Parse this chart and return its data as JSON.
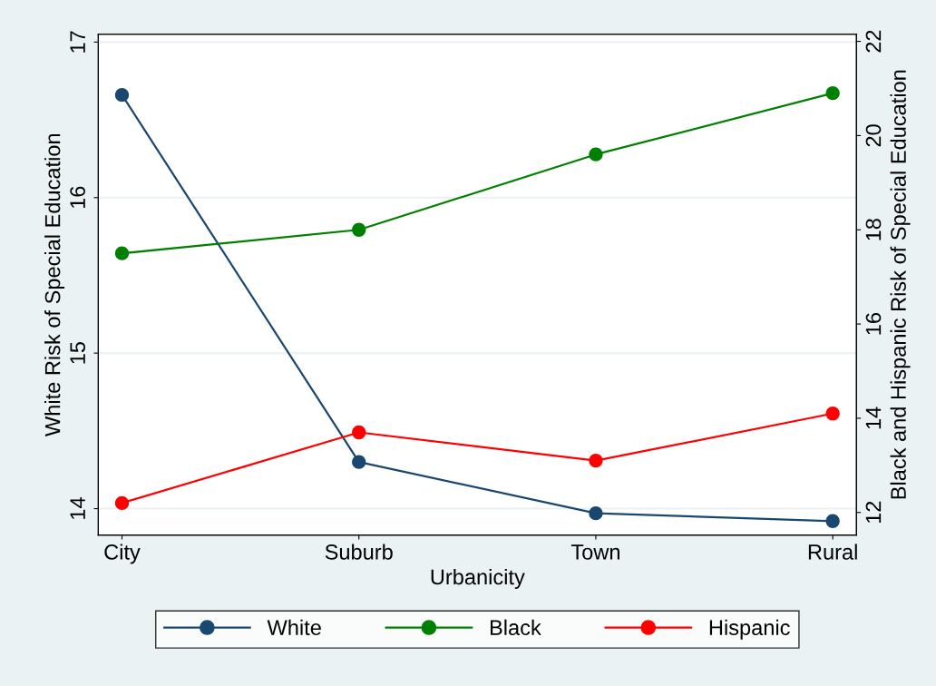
{
  "chart_data": {
    "type": "line",
    "xlabel": "Urbanicity",
    "ylabel": "White Risk of Special Education",
    "y2label": "Black and Hispanic Risk of Special Education",
    "categories": [
      "City",
      "Suburb",
      "Town",
      "Rural"
    ],
    "series": [
      {
        "name": "White",
        "color": "#1a476f",
        "values": [
          16.66,
          14.3,
          13.97,
          13.92
        ]
      },
      {
        "name": "Black",
        "color": "#008000",
        "axis": "y2",
        "values": [
          17.5,
          18.0,
          19.6,
          20.9
        ]
      },
      {
        "name": "Hispanic",
        "color": "#ff0000",
        "axis": "y2",
        "values": [
          12.2,
          13.7,
          13.1,
          14.1
        ]
      }
    ],
    "ylim": [
      13.83,
      17.05
    ],
    "yticks": [
      14,
      15,
      16,
      17
    ],
    "y2lim": [
      11.52,
      22.15
    ],
    "y2ticks": [
      12,
      14,
      16,
      18,
      20,
      22
    ],
    "grid": "y",
    "legend": "bottom",
    "marker": "circle",
    "line_style": "solid"
  }
}
